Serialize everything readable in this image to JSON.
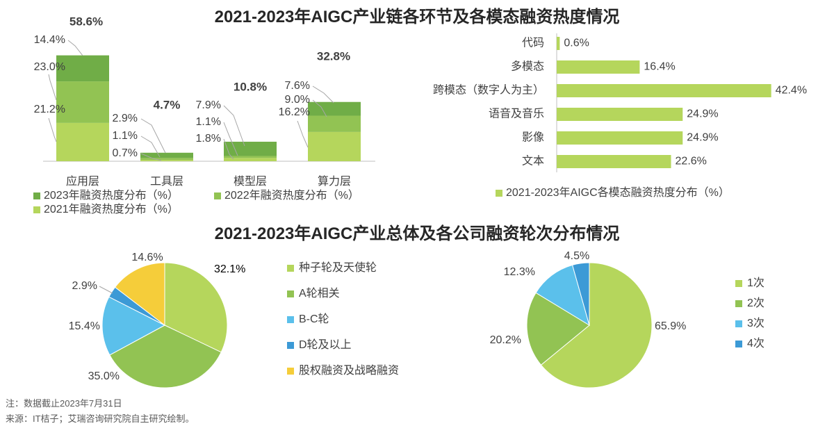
{
  "titles": {
    "top": "2021-2023年AIGC产业链各环节及各模态融资热度情况",
    "bottom": "2021-2023年AIGC产业总体及各公司融资轮次分布情况"
  },
  "notes": {
    "line1": "注：数据截止2023年7月31日",
    "line2": "来源：IT桔子；艾瑞咨询研究院自主研究绘制。"
  },
  "colors": {
    "y2023": "#70ad47",
    "y2022": "#92c353",
    "y2021": "#b5d65c",
    "seed": "#b5d65c",
    "a_round": "#92c353",
    "bc_round": "#5bc0eb",
    "d_round": "#3c9ad6",
    "equity": "#f5cd3a",
    "times1": "#b5d65c",
    "times2": "#92c353",
    "times3": "#5bc0eb",
    "times4": "#3c9ad6"
  },
  "chart_data": [
    {
      "id": "chain-stacked-bar",
      "type": "bar",
      "stacked": true,
      "categories": [
        "应用层",
        "工具层",
        "模型层",
        "算力层"
      ],
      "series": [
        {
          "name": "2021年融资热度分布（%）",
          "color_key": "y2021",
          "values": [
            21.2,
            0.7,
            1.8,
            16.2
          ],
          "labels": [
            "21.2%",
            "0.7%",
            "1.8%",
            "16.2%"
          ]
        },
        {
          "name": "2022年融资热度分布（%）",
          "color_key": "y2022",
          "values": [
            23.0,
            1.1,
            1.1,
            9.0
          ],
          "labels": [
            "23.0%",
            "1.1%",
            "1.1%",
            "9.0%"
          ]
        },
        {
          "name": "2023年融资热度分布（%）",
          "color_key": "y2023",
          "values": [
            14.4,
            2.9,
            7.9,
            7.6
          ],
          "labels": [
            "14.4%",
            "2.9%",
            "7.9%",
            "7.6%"
          ]
        }
      ],
      "totals": [
        "58.6%",
        "4.7%",
        "10.8%",
        "32.8%"
      ],
      "legend_position": "bottom-left"
    },
    {
      "id": "modality-hbar",
      "type": "bar",
      "orientation": "horizontal",
      "categories": [
        "代码",
        "多模态",
        "跨模态（数字人为主）",
        "语音及音乐",
        "影像",
        "文本"
      ],
      "values": [
        0.6,
        16.4,
        42.4,
        24.9,
        24.9,
        22.6
      ],
      "labels": [
        "0.6%",
        "16.4%",
        "42.4%",
        "24.9%",
        "24.9%",
        "22.6%"
      ],
      "legend": "2021-2023年AIGC各模态融资热度分布（%）",
      "color_key": "y2021",
      "legend_position": "bottom"
    },
    {
      "id": "round-pie",
      "type": "pie",
      "slices": [
        {
          "name": "种子轮及天使轮",
          "value": 32.1,
          "label": "32.1%",
          "color_key": "seed"
        },
        {
          "name": "A轮相关",
          "value": 35.0,
          "label": "35.0%",
          "color_key": "a_round"
        },
        {
          "name": "B-C轮",
          "value": 15.4,
          "label": "15.4%",
          "color_key": "bc_round"
        },
        {
          "name": "D轮及以上",
          "value": 2.9,
          "label": "2.9%",
          "color_key": "d_round"
        },
        {
          "name": "股权融资及战略融资",
          "value": 14.6,
          "label": "14.6%",
          "color_key": "equity"
        }
      ],
      "legend_position": "right"
    },
    {
      "id": "times-pie",
      "type": "pie",
      "slices": [
        {
          "name": "1次",
          "value": 65.9,
          "label": "65.9%",
          "color_key": "times1"
        },
        {
          "name": "2次",
          "value": 20.2,
          "label": "20.2%",
          "color_key": "times2"
        },
        {
          "name": "3次",
          "value": 12.3,
          "label": "12.3%",
          "color_key": "times3"
        },
        {
          "name": "4次",
          "value": 4.5,
          "label": "4.5%",
          "color_key": "times4"
        }
      ],
      "legend_position": "right"
    }
  ]
}
